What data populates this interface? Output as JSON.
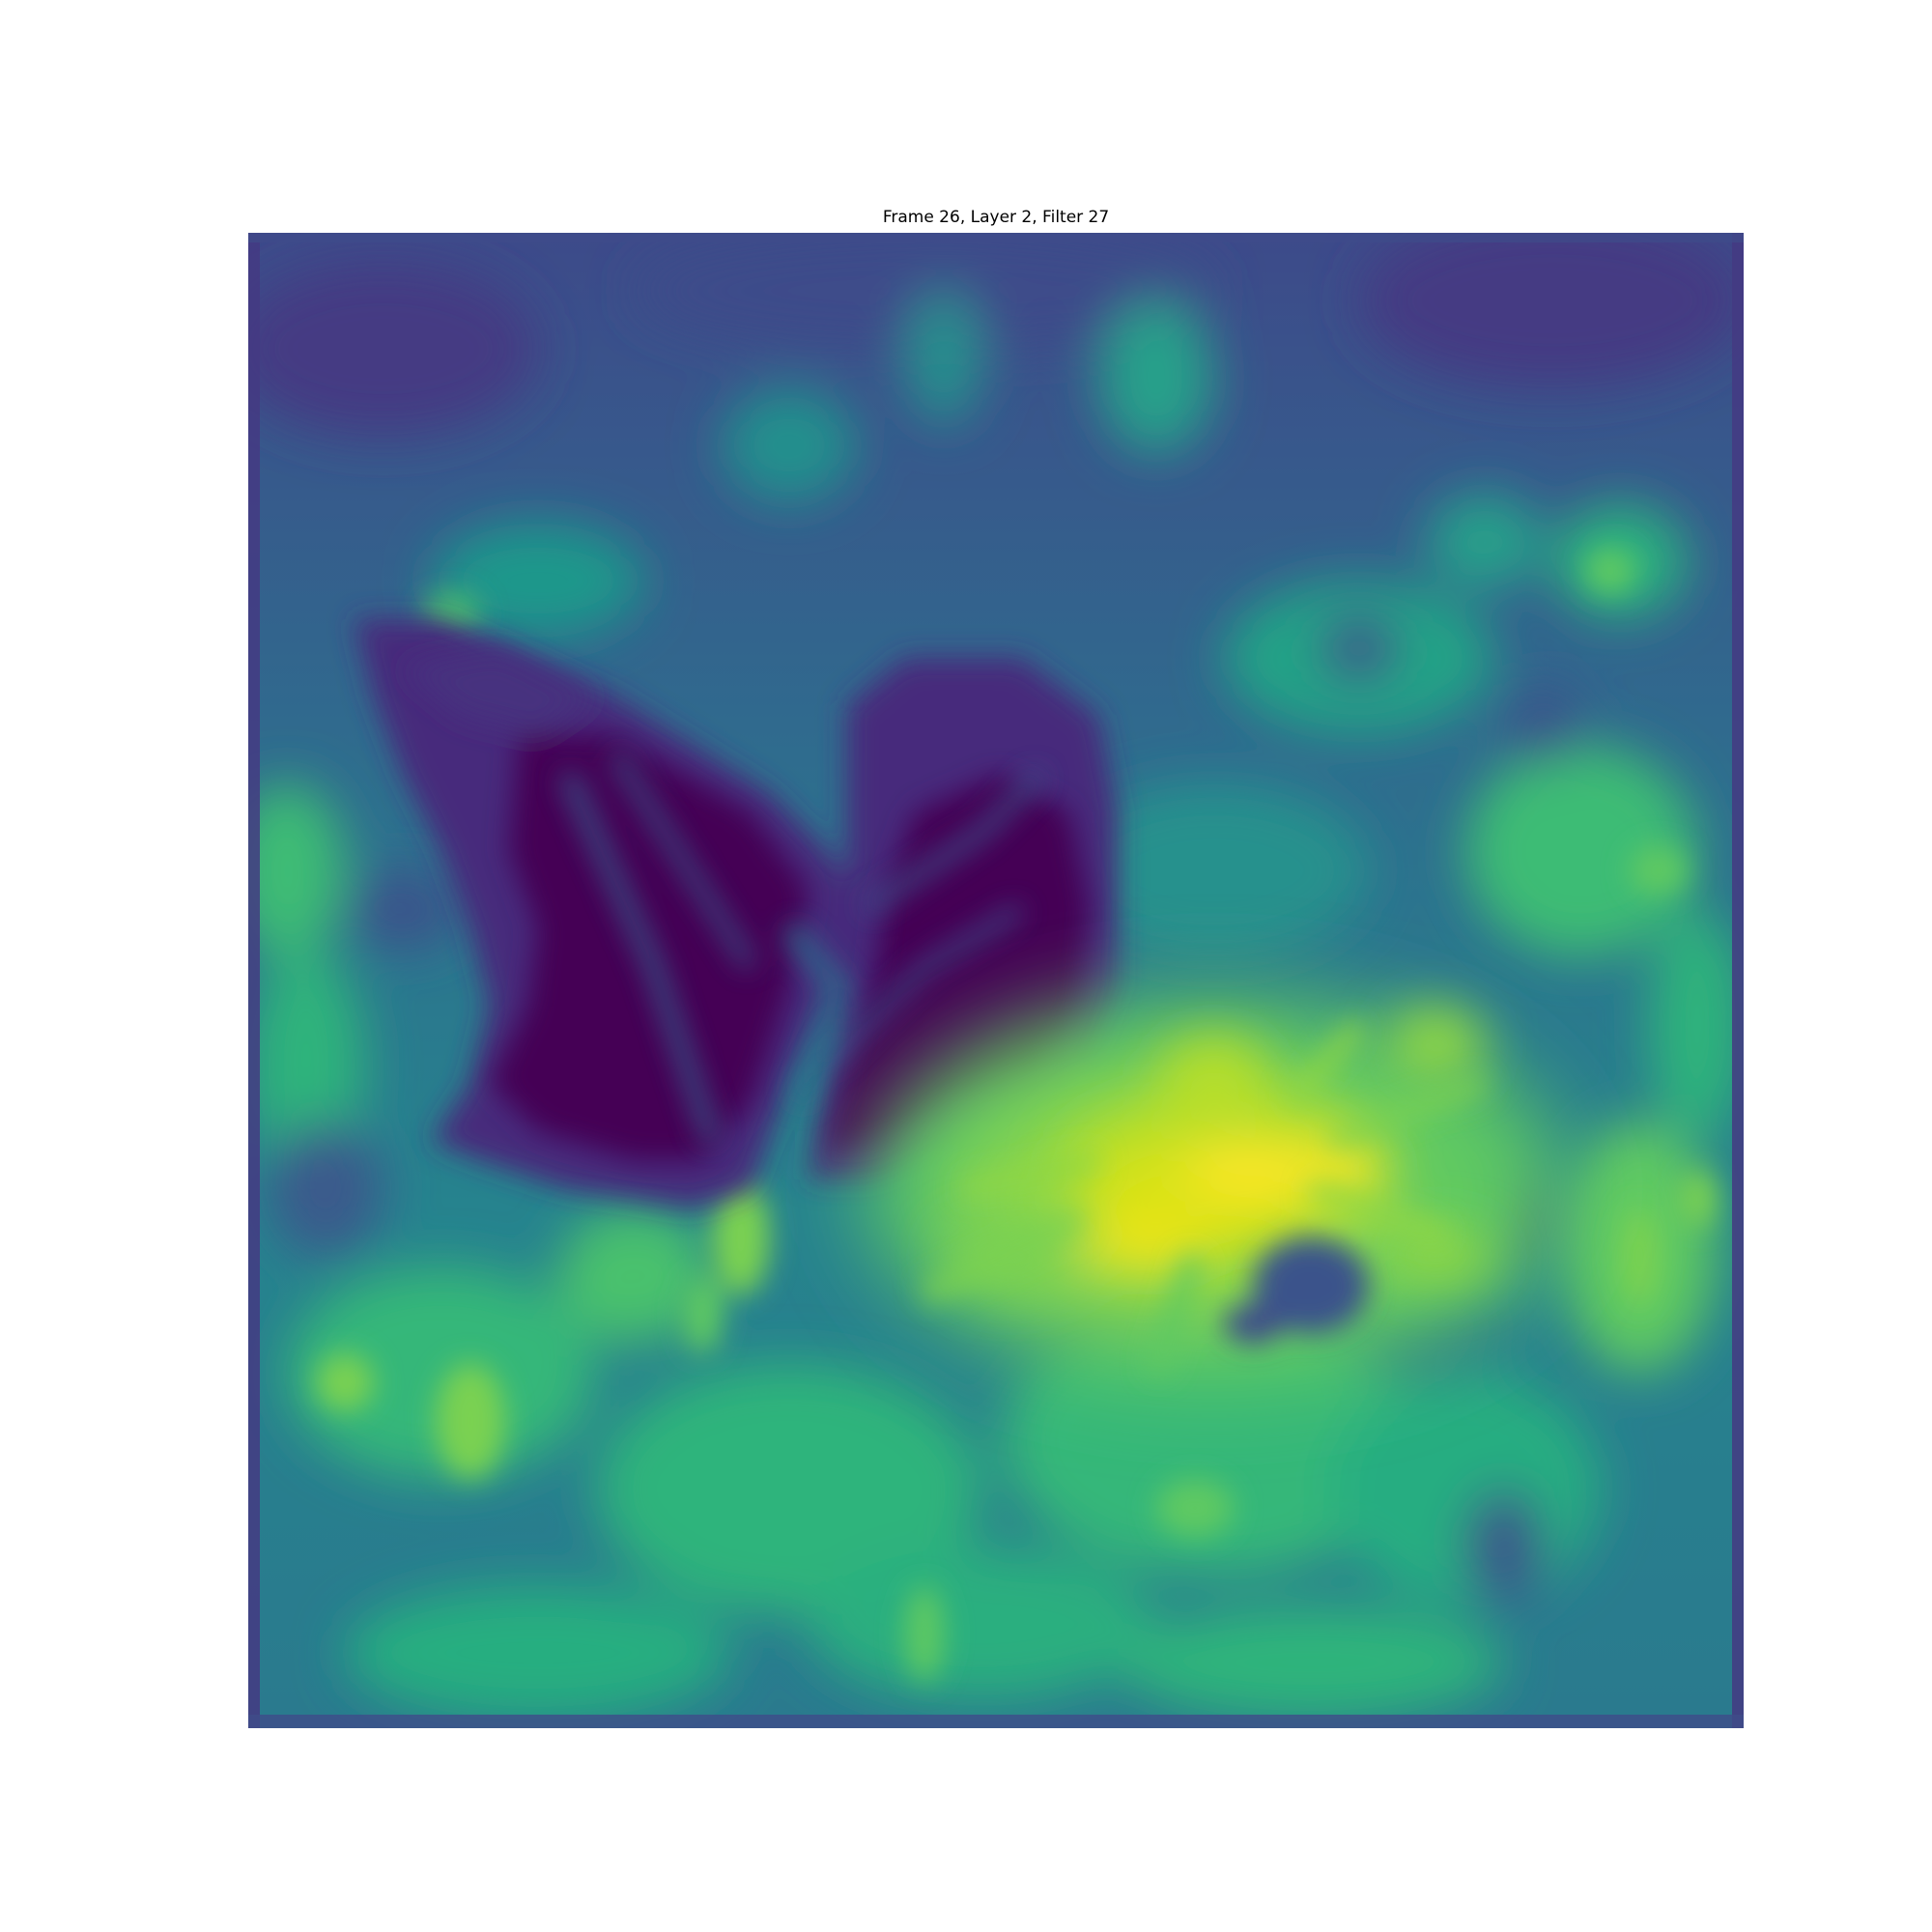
{
  "figure": {
    "title": "Frame 26, Layer 2, Filter 27"
  },
  "image": {
    "content": "Feature-map activation heatmap (viridis colormap) of a butterfly resting on a yellow flower; butterfly silhouette appears as a dark purple low-activation region upper-left, flower as bright yellow high-activation region center-right.",
    "colormap": "viridis",
    "colors": {
      "low": "#440154",
      "low_mid": "#3b528b",
      "mid": "#21908d",
      "high_mid": "#5dc963",
      "high": "#fde725"
    }
  }
}
